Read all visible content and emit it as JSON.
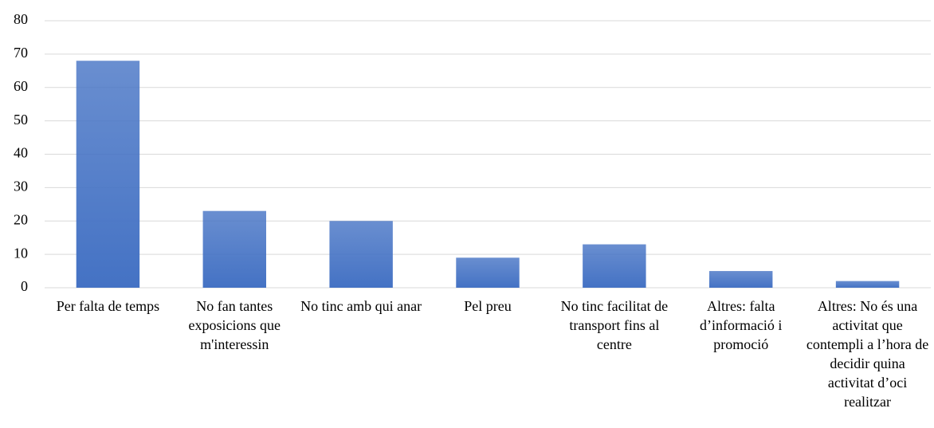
{
  "chart_data": {
    "type": "bar",
    "categories": [
      "Per falta de temps",
      "No fan tantes exposicions que m'interessin",
      "No tinc amb qui anar",
      "Pel preu",
      "No tinc facilitat de transport fins al centre",
      "Altres: falta d’informació i promoció",
      "Altres: No és una activitat que contempli a l’hora de decidir quina activitat d’oci realitzar"
    ],
    "values": [
      68,
      23,
      20,
      9,
      13,
      5,
      2
    ],
    "color": "#4472c4",
    "ylim": [
      0,
      80
    ],
    "yticks": [
      0,
      10,
      20,
      30,
      40,
      50,
      60,
      70,
      80
    ],
    "grid": true
  }
}
